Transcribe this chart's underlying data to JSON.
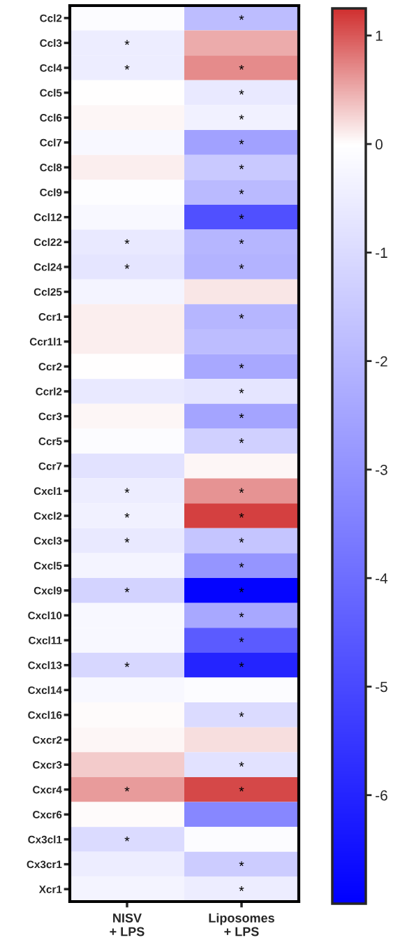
{
  "chart_data": {
    "type": "heatmap",
    "categories": [
      "NISV\n+ LPS",
      "Liposomes\n+ LPS"
    ],
    "y_categories": [
      "Ccl2",
      "Ccl3",
      "Ccl4",
      "Ccl5",
      "Ccl6",
      "Ccl7",
      "Ccl8",
      "Ccl9",
      "Ccl12",
      "Ccl22",
      "Ccl24",
      "Ccl25",
      "Ccr1",
      "Ccr1l1",
      "Ccr2",
      "Ccrl2",
      "Ccr3",
      "Ccr5",
      "Ccr7",
      "Cxcl1",
      "Cxcl2",
      "Cxcl3",
      "Cxcl5",
      "Cxcl9",
      "Cxcl10",
      "Cxcl11",
      "Cxcl13",
      "Cxcl14",
      "Cxcl16",
      "Cxcr2",
      "Cxcr3",
      "Cxcr4",
      "Cxcr6",
      "Cx3cl1",
      "Cx3cr1",
      "Xcr1"
    ],
    "cells": [
      [
        -0.1,
        -1.8
      ],
      [
        -0.5,
        0.5
      ],
      [
        -0.5,
        0.7
      ],
      [
        0,
        -0.6
      ],
      [
        0.05,
        -0.4
      ],
      [
        -0.2,
        -2.6
      ],
      [
        0.1,
        -1.5
      ],
      [
        -0.05,
        -1.9
      ],
      [
        -0.2,
        -4.8
      ],
      [
        -0.6,
        -2.0
      ],
      [
        -0.7,
        -2.1
      ],
      [
        -0.3,
        0.15
      ],
      [
        0.1,
        -2.0
      ],
      [
        0.1,
        -1.8
      ],
      [
        0,
        -2.4
      ],
      [
        -0.6,
        -0.7
      ],
      [
        0.05,
        -2.5
      ],
      [
        -0.1,
        -1.3
      ],
      [
        -0.8,
        0.05
      ],
      [
        -0.5,
        0.65
      ],
      [
        -0.4,
        1.15
      ],
      [
        -0.6,
        -1.6
      ],
      [
        -0.3,
        -2.9
      ],
      [
        -1.2,
        -6.9
      ],
      [
        -0.2,
        -2.4
      ],
      [
        -0.2,
        -4.5
      ],
      [
        -1.1,
        -6.0
      ],
      [
        -0.2,
        -0.1
      ],
      [
        0.02,
        -1.0
      ],
      [
        0.05,
        0.2
      ],
      [
        0.3,
        -0.8
      ],
      [
        0.6,
        1.1
      ],
      [
        0.02,
        -3.3
      ],
      [
        -1.0,
        -0.1
      ],
      [
        -0.5,
        -1.4
      ],
      [
        -0.3,
        -0.5
      ]
    ],
    "cell_labels": [
      [
        null,
        "*"
      ],
      [
        "*",
        null
      ],
      [
        "*",
        "*"
      ],
      [
        null,
        "*"
      ],
      [
        null,
        "*"
      ],
      [
        null,
        "*"
      ],
      [
        null,
        "*"
      ],
      [
        null,
        "*"
      ],
      [
        null,
        "*"
      ],
      [
        "*",
        "*"
      ],
      [
        "*",
        "*"
      ],
      [
        null,
        null
      ],
      [
        null,
        "*"
      ],
      [
        null,
        null
      ],
      [
        null,
        "*"
      ],
      [
        null,
        "*"
      ],
      [
        null,
        "*"
      ],
      [
        null,
        "*"
      ],
      [
        null,
        null
      ],
      [
        "*",
        "*"
      ],
      [
        "*",
        "*"
      ],
      [
        "*",
        "*"
      ],
      [
        null,
        "*"
      ],
      [
        "*",
        "*"
      ],
      [
        null,
        "*"
      ],
      [
        null,
        "*"
      ],
      [
        "*",
        "*"
      ],
      [
        null,
        null
      ],
      [
        null,
        "*"
      ],
      [
        null,
        null
      ],
      [
        null,
        "*"
      ],
      [
        "*",
        "*"
      ],
      [
        null,
        null
      ],
      [
        "*",
        null
      ],
      [
        null,
        "*"
      ],
      [
        null,
        "*"
      ]
    ],
    "colors": [
      "#0000ff",
      "#ffffff",
      "#d03030"
    ],
    "clim": [
      -7,
      1.25
    ],
    "cticks": [
      1,
      0,
      -1,
      -2,
      -3,
      -4,
      -5,
      -6
    ]
  }
}
